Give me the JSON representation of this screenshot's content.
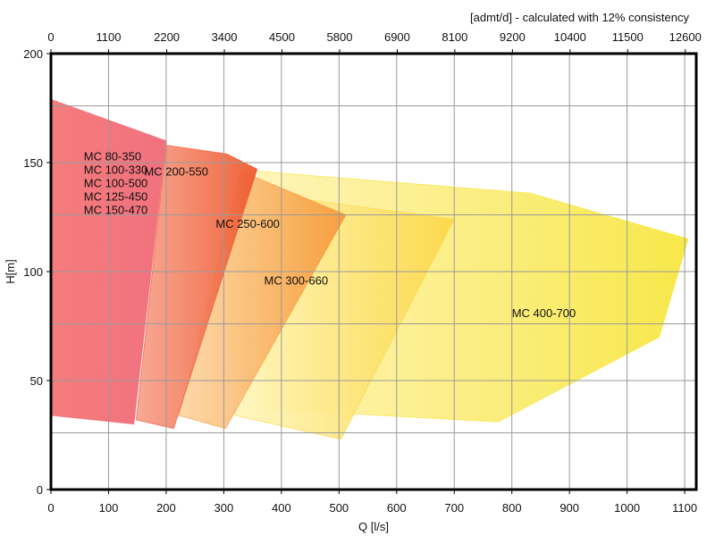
{
  "chart_data": {
    "type": "area",
    "title": "",
    "xlabel": "Q [l/s]",
    "ylabel": "H[m]",
    "x2label": "[admt/d] - calculated with 12% consistency",
    "xlim": [
      0,
      1120
    ],
    "ylim": [
      0,
      200
    ],
    "grid": true,
    "x_ticks": [
      0,
      100,
      200,
      300,
      400,
      500,
      600,
      700,
      800,
      900,
      1000,
      1100
    ],
    "y_ticks": [
      0,
      50,
      100,
      150,
      200
    ],
    "extra_grid_y": [
      26,
      76,
      126,
      176
    ],
    "top_ticks": [
      {
        "label": "0",
        "q": 0
      },
      {
        "label": "1100",
        "q": 100
      },
      {
        "label": "2200",
        "q": 201
      },
      {
        "label": "3400",
        "q": 301
      },
      {
        "label": "4500",
        "q": 401
      },
      {
        "label": "5800",
        "q": 501
      },
      {
        "label": "6900",
        "q": 601
      },
      {
        "label": "8100",
        "q": 701
      },
      {
        "label": "9200",
        "q": 801
      },
      {
        "label": "10400",
        "q": 901
      },
      {
        "label": "11500",
        "q": 1001
      },
      {
        "label": "12600",
        "q": 1101
      }
    ],
    "series": [
      {
        "name": "MC 400-700",
        "color_from": "#fff3b0",
        "color_to": "#f7e640",
        "points": [
          [
            360,
            146
          ],
          [
            832,
            136
          ],
          [
            1106,
            115
          ],
          [
            1056,
            70
          ],
          [
            776,
            31
          ],
          [
            372,
            37
          ]
        ],
        "label_at": [
          800,
          79
        ]
      },
      {
        "name": "MC 300-660",
        "color_from": "#fff7c0",
        "color_to": "#fbd84a",
        "points": [
          [
            300,
            138
          ],
          [
            700,
            124
          ],
          [
            503,
            23
          ],
          [
            320,
            34
          ]
        ],
        "label_at": [
          370,
          94
        ]
      },
      {
        "name": "MC 250-600",
        "color_from": "#fcd4a0",
        "color_to": "#f79b3a",
        "points": [
          [
            330,
            146
          ],
          [
            512,
            126
          ],
          [
            303,
            28
          ],
          [
            222,
            34
          ]
        ],
        "label_at": [
          286,
          120
        ]
      },
      {
        "name": "MC 200-550",
        "color_from": "#f7a08a",
        "color_to": "#ee5a2e",
        "points": [
          [
            200,
            158
          ],
          [
            305,
            154
          ],
          [
            358,
            147
          ],
          [
            213,
            28
          ],
          [
            148,
            32
          ]
        ],
        "label_at": [
          162,
          144
        ]
      },
      {
        "name": "MC 80-350, MC 100-330, MC 100-500, MC 125-450, MC 150-470",
        "color_from": "#f46d6d",
        "color_to": "#f06a78",
        "points": [
          [
            0,
            179
          ],
          [
            200,
            160
          ],
          [
            144,
            30
          ],
          [
            0,
            34
          ]
        ],
        "label_lines": [
          "MC 80-350",
          "MC 100-330",
          "MC 100-500",
          "MC 125-450",
          "MC 150-470"
        ],
        "label_at": [
          57,
          151
        ]
      }
    ]
  }
}
